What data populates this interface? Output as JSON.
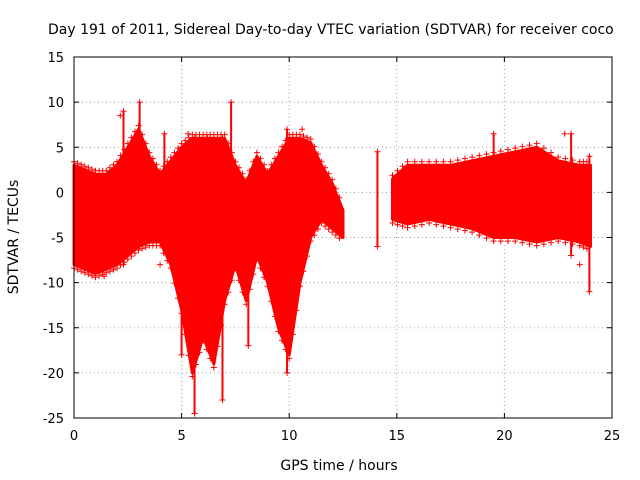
{
  "chart_data": {
    "type": "scatter",
    "title": "Day 191 of 2011, Sidereal Day-to-day VTEC variation (SDTVAR) for receiver coco",
    "xlabel": "GPS time / hours",
    "ylabel": "SDTVAR / TECUs",
    "xlim": [
      0,
      25
    ],
    "ylim": [
      -25,
      15
    ],
    "xticks": [
      0,
      5,
      10,
      15,
      20,
      25
    ],
    "yticks": [
      -25,
      -20,
      -15,
      -10,
      -5,
      0,
      5,
      10,
      15
    ],
    "grid": true,
    "marker": "+",
    "series": [
      {
        "name": "SDTVAR",
        "color": "#ff0000",
        "envelope": [
          {
            "x": 0.0,
            "lo": -8,
            "hi": 3
          },
          {
            "x": 0.5,
            "lo": -8.5,
            "hi": 2.5
          },
          {
            "x": 1.0,
            "lo": -9,
            "hi": 2
          },
          {
            "x": 1.5,
            "lo": -8.5,
            "hi": 2
          },
          {
            "x": 2.0,
            "lo": -8,
            "hi": 3
          },
          {
            "x": 2.5,
            "lo": -7,
            "hi": 5
          },
          {
            "x": 3.0,
            "lo": -6,
            "hi": 7
          },
          {
            "x": 3.5,
            "lo": -5.5,
            "hi": 4
          },
          {
            "x": 4.0,
            "lo": -5.5,
            "hi": 2
          },
          {
            "x": 4.5,
            "lo": -8,
            "hi": 3.5
          },
          {
            "x": 5.0,
            "lo": -13,
            "hi": 5
          },
          {
            "x": 5.5,
            "lo": -20,
            "hi": 6
          },
          {
            "x": 6.0,
            "lo": -16,
            "hi": 6
          },
          {
            "x": 6.5,
            "lo": -19,
            "hi": 6
          },
          {
            "x": 7.0,
            "lo": -12,
            "hi": 6
          },
          {
            "x": 7.5,
            "lo": -8,
            "hi": 3
          },
          {
            "x": 8.0,
            "lo": -12,
            "hi": 1
          },
          {
            "x": 8.5,
            "lo": -7,
            "hi": 4
          },
          {
            "x": 9.0,
            "lo": -10,
            "hi": 2
          },
          {
            "x": 9.5,
            "lo": -15,
            "hi": 4
          },
          {
            "x": 10.0,
            "lo": -18,
            "hi": 6
          },
          {
            "x": 10.5,
            "lo": -10,
            "hi": 6
          },
          {
            "x": 11.0,
            "lo": -5,
            "hi": 5.5
          },
          {
            "x": 11.5,
            "lo": -3,
            "hi": 3
          },
          {
            "x": 12.0,
            "lo": -4,
            "hi": 1
          },
          {
            "x": 12.5,
            "lo": -5,
            "hi": -2
          },
          {
            "x": 14.8,
            "lo": -3,
            "hi": 1.5
          },
          {
            "x": 15.5,
            "lo": -3.5,
            "hi": 3
          },
          {
            "x": 16.5,
            "lo": -3,
            "hi": 3
          },
          {
            "x": 17.5,
            "lo": -3.5,
            "hi": 3
          },
          {
            "x": 18.5,
            "lo": -4,
            "hi": 3.5
          },
          {
            "x": 19.5,
            "lo": -5,
            "hi": 4
          },
          {
            "x": 20.5,
            "lo": -5,
            "hi": 4.5
          },
          {
            "x": 21.5,
            "lo": -5.5,
            "hi": 5
          },
          {
            "x": 22.5,
            "lo": -5,
            "hi": 3.5
          },
          {
            "x": 23.5,
            "lo": -5.5,
            "hi": 3
          },
          {
            "x": 24.0,
            "lo": -6,
            "hi": 3
          }
        ],
        "spikes": [
          {
            "x": 2.3,
            "lo": -8,
            "hi": 9
          },
          {
            "x": 3.05,
            "lo": -6,
            "hi": 10
          },
          {
            "x": 4.2,
            "lo": -5,
            "hi": 6.5
          },
          {
            "x": 5.0,
            "lo": -18,
            "hi": 5
          },
          {
            "x": 5.6,
            "lo": -24.5,
            "hi": 6
          },
          {
            "x": 6.2,
            "lo": -15,
            "hi": 6
          },
          {
            "x": 6.9,
            "lo": -23,
            "hi": 6
          },
          {
            "x": 7.3,
            "lo": -8,
            "hi": 10
          },
          {
            "x": 8.1,
            "lo": -17,
            "hi": 1
          },
          {
            "x": 9.9,
            "lo": -20,
            "hi": 7
          },
          {
            "x": 14.1,
            "lo": -6,
            "hi": 4.5
          },
          {
            "x": 19.5,
            "lo": -5,
            "hi": 6.5
          },
          {
            "x": 23.1,
            "lo": -7,
            "hi": 6.5
          },
          {
            "x": 23.95,
            "lo": -11,
            "hi": 4
          }
        ],
        "isolated_points": [
          {
            "x": 2.15,
            "y": 8.5
          },
          {
            "x": 5.3,
            "y": 6.5
          },
          {
            "x": 10.6,
            "y": 7
          },
          {
            "x": 22.8,
            "y": 6.5
          },
          {
            "x": 1.4,
            "y": -9.3
          },
          {
            "x": 4.0,
            "y": -8
          },
          {
            "x": 23.5,
            "y": -8
          }
        ]
      }
    ]
  }
}
